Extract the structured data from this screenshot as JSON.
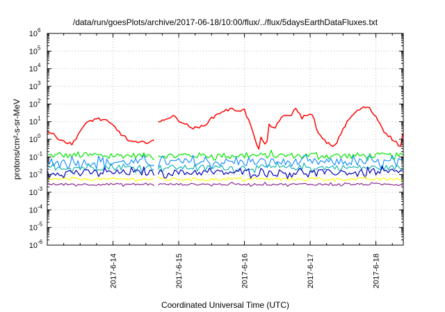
{
  "chart_data": {
    "type": "line",
    "title": "/data/run/goesPlots/archive/2017-06-18/10:00/flux/../flux/5daysEarthDataFluxes.txt",
    "xlabel": "Coordinated Universal Time (UTC)",
    "ylabel": "protons/cm²-s-sr-MeV",
    "y_scale": "log",
    "ylim_exponents": [
      -6,
      6
    ],
    "y_tick_base": "10",
    "y_tick_exponents": [
      "6",
      "5",
      "4",
      "3",
      "2",
      "1",
      "0",
      "-1",
      "-2",
      "-3",
      "-4",
      "-5",
      "-6"
    ],
    "x_range_days": [
      "2017-06-13",
      "2017-06-18T10:00"
    ],
    "x_ticks": [
      "2017-6-14",
      "2017-6-15",
      "2017-6-16",
      "2017-6-17",
      "2017-6-18"
    ],
    "grid": true,
    "legend": "none",
    "data_gap": [
      "2017-06-14T15:00",
      "2017-06-14T16:00"
    ],
    "series": [
      {
        "color": "#ff0000",
        "x": [
          "2017-06-13T00:00",
          "2017-06-13T03:00",
          "2017-06-13T06:00",
          "2017-06-13T09:00",
          "2017-06-13T12:00",
          "2017-06-13T15:00",
          "2017-06-13T18:00",
          "2017-06-13T21:00",
          "2017-06-14T00:00",
          "2017-06-14T03:00",
          "2017-06-14T06:00",
          "2017-06-14T09:00",
          "2017-06-14T12:00",
          "2017-06-14T15:00",
          "2017-06-14T16:00",
          "2017-06-14T19:00",
          "2017-06-14T22:00",
          "2017-06-15T01:00",
          "2017-06-15T04:00",
          "2017-06-15T07:00",
          "2017-06-15T10:00",
          "2017-06-15T13:00",
          "2017-06-15T16:00",
          "2017-06-15T19:00",
          "2017-06-15T22:00",
          "2017-06-16T00:00",
          "2017-06-16T03:00",
          "2017-06-16T05:00",
          "2017-06-16T06:00",
          "2017-06-16T08:00",
          "2017-06-16T09:00",
          "2017-06-16T11:00",
          "2017-06-16T13:00",
          "2017-06-16T15:00",
          "2017-06-16T17:00",
          "2017-06-16T19:00",
          "2017-06-16T21:00",
          "2017-06-16T23:00",
          "2017-06-17T01:00",
          "2017-06-17T03:00",
          "2017-06-17T06:00",
          "2017-06-17T09:00",
          "2017-06-17T12:00",
          "2017-06-17T15:00",
          "2017-06-17T18:00",
          "2017-06-17T21:00",
          "2017-06-18T00:00",
          "2017-06-18T03:00",
          "2017-06-18T06:00",
          "2017-06-18T09:00",
          "2017-06-18T10:00"
        ],
        "values": [
          3,
          1.5,
          0.8,
          0.5,
          3,
          10,
          15,
          12,
          6,
          2,
          0.8,
          0.6,
          0.7,
          0.9,
          7,
          15,
          20,
          10,
          5,
          4,
          8,
          20,
          40,
          50,
          45,
          45,
          3,
          0.2,
          1.5,
          0.3,
          6,
          4,
          15,
          20,
          25,
          60,
          15,
          30,
          20,
          2,
          0.6,
          0.4,
          4,
          20,
          50,
          70,
          20,
          3,
          1,
          0.4,
          3
        ]
      },
      {
        "color": "#00e600",
        "x": [
          "2017-06-13T00:00",
          "2017-06-14T15:00",
          "2017-06-14T16:00",
          "2017-06-18T10:00"
        ],
        "values": [
          0.12,
          0.12,
          0.12,
          0.12
        ]
      },
      {
        "color": "#1e8fff",
        "x": [
          "2017-06-13T00:00",
          "2017-06-14T15:00",
          "2017-06-14T16:00",
          "2017-06-18T10:00"
        ],
        "values": [
          0.05,
          0.05,
          0.05,
          0.05
        ]
      },
      {
        "color": "#19b3b3",
        "x": [
          "2017-06-13T00:00",
          "2017-06-14T15:00",
          "2017-06-14T16:00",
          "2017-06-18T10:00"
        ],
        "values": [
          0.025,
          0.025,
          0.025,
          0.025
        ]
      },
      {
        "color": "#0000b4",
        "x": [
          "2017-06-13T00:00",
          "2017-06-14T15:00",
          "2017-06-14T16:00",
          "2017-06-18T10:00"
        ],
        "values": [
          0.013,
          0.013,
          0.013,
          0.013
        ]
      },
      {
        "color": "#ffff00",
        "x": [
          "2017-06-13T00:00",
          "2017-06-14T15:00",
          "2017-06-14T16:00",
          "2017-06-18T10:00"
        ],
        "values": [
          0.0055,
          0.0055,
          0.0055,
          0.0055
        ]
      },
      {
        "color": "#8b2b8b",
        "x": [
          "2017-06-13T00:00",
          "2017-06-14T15:00",
          "2017-06-14T16:00",
          "2017-06-18T10:00"
        ],
        "values": [
          0.0028,
          0.0028,
          0.0028,
          0.0028
        ]
      }
    ]
  }
}
